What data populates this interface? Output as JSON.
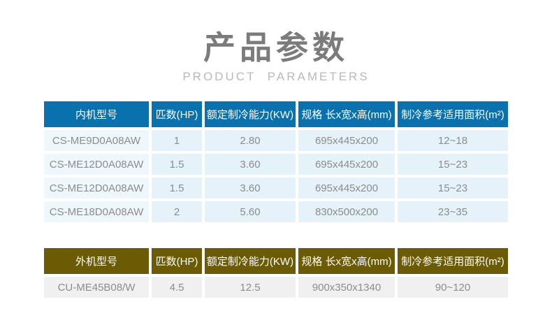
{
  "header": {
    "title": "产品参数",
    "subtitle": "PRODUCT PARAMETERS"
  },
  "colors": {
    "indoor_header_bg": "#0971ad",
    "outdoor_header_bg": "#6b5b05",
    "indoor_row_bg": "#e6f2fa",
    "indoor_model_cell_bg": "#eef7fc",
    "outdoor_row_bg": "#f0f0f0",
    "header_text": "#ffffff",
    "cell_text": "#8c8c8c"
  },
  "indoor_table": {
    "headers": [
      "内机型号",
      "匹数(HP)",
      "额定制冷能力(KW)",
      "规格 长x宽x高(mm)",
      "制冷参考适用面积(m²)"
    ],
    "rows": [
      [
        "CS-ME9D0A08AW",
        "1",
        "2.80",
        "695x445x200",
        "12~18"
      ],
      [
        "CS-ME12D0A08AW",
        "1.5",
        "3.60",
        "695x445x200",
        "15~23"
      ],
      [
        "CS-ME12D0A08AW",
        "1.5",
        "3.60",
        "695x445x200",
        "15~23"
      ],
      [
        "CS-ME18D0A08AW",
        "2",
        "5.60",
        "830x500x200",
        "23~35"
      ]
    ]
  },
  "outdoor_table": {
    "headers": [
      "外机型号",
      "匹数(HP)",
      "额定制冷能力(KW)",
      "规格 长x宽x高(mm)",
      "制冷参考适用面积(m²)"
    ],
    "rows": [
      [
        "CU-ME45B08/W",
        "4.5",
        "12.5",
        "900x350x1340",
        "90~120"
      ]
    ]
  }
}
